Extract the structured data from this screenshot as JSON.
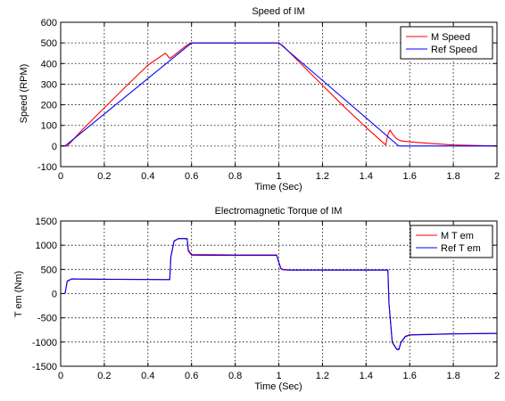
{
  "chart_data": [
    {
      "type": "line",
      "title": "Speed of IM",
      "xlabel": "Time (Sec)",
      "ylabel": "Speed (RPM)",
      "xlim": [
        0,
        2
      ],
      "ylim": [
        -100,
        600
      ],
      "xticks": [
        0,
        0.2,
        0.4,
        0.6,
        0.8,
        1,
        1.2,
        1.4,
        1.6,
        1.8,
        2
      ],
      "yticks": [
        -100,
        0,
        100,
        200,
        300,
        400,
        500,
        600
      ],
      "grid": true,
      "legend_position": "top-right",
      "series": [
        {
          "name": "M Speed",
          "color": "#ff0000",
          "x": [
            0,
            0.03,
            0.05,
            0.1,
            0.2,
            0.3,
            0.4,
            0.48,
            0.5,
            0.52,
            0.55,
            0.58,
            0.6,
            0.7,
            0.8,
            0.9,
            1.0,
            1.02,
            1.1,
            1.2,
            1.3,
            1.4,
            1.49,
            1.5,
            1.51,
            1.52,
            1.54,
            1.56,
            1.6,
            1.7,
            1.8,
            2.0
          ],
          "y": [
            0,
            0,
            22,
            80,
            185,
            290,
            392,
            450,
            425,
            440,
            465,
            490,
            500,
            500,
            500,
            500,
            500,
            485,
            400,
            295,
            190,
            90,
            5,
            55,
            78,
            60,
            35,
            25,
            20,
            12,
            5,
            0
          ]
        },
        {
          "name": "Ref Speed",
          "color": "#0000ff",
          "x": [
            0,
            0.02,
            0.6,
            1.0,
            1.55,
            2.0
          ],
          "y": [
            0,
            0,
            500,
            500,
            0,
            0
          ]
        }
      ]
    },
    {
      "type": "line",
      "title": "Electromagnetic Torque of IM",
      "xlabel": "Time (Sec)",
      "ylabel": "T em (Nm)",
      "xlim": [
        0,
        2
      ],
      "ylim": [
        -1500,
        1500
      ],
      "xticks": [
        0,
        0.2,
        0.4,
        0.6,
        0.8,
        1,
        1.2,
        1.4,
        1.6,
        1.8,
        2
      ],
      "yticks": [
        -1500,
        -1000,
        -500,
        0,
        500,
        1000,
        1500
      ],
      "grid": true,
      "legend_position": "top-right",
      "series": [
        {
          "name": "M T em",
          "color": "#ff0000",
          "x": [
            0,
            0.02,
            0.03,
            0.05,
            0.1,
            0.3,
            0.5,
            0.505,
            0.52,
            0.54,
            0.56,
            0.58,
            0.585,
            0.6,
            0.8,
            0.99,
            1.0,
            1.01,
            1.02,
            1.05,
            1.2,
            1.4,
            1.5,
            1.505,
            1.52,
            1.54,
            1.55,
            1.56,
            1.58,
            1.6,
            1.8,
            2.0
          ],
          "y": [
            0,
            0,
            250,
            300,
            300,
            295,
            290,
            750,
            1080,
            1140,
            1140,
            1140,
            900,
            810,
            800,
            800,
            650,
            520,
            500,
            490,
            490,
            490,
            490,
            -200,
            -1000,
            -1140,
            -1150,
            -1000,
            -880,
            -850,
            -830,
            -820
          ]
        },
        {
          "name": "Ref T em",
          "color": "#0000ff",
          "x": [
            0,
            0.02,
            0.03,
            0.05,
            0.1,
            0.3,
            0.5,
            0.505,
            0.52,
            0.54,
            0.56,
            0.58,
            0.585,
            0.6,
            0.8,
            0.99,
            1.0,
            1.01,
            1.02,
            1.05,
            1.2,
            1.4,
            1.5,
            1.505,
            1.52,
            1.54,
            1.55,
            1.56,
            1.58,
            1.6,
            1.8,
            2.0
          ],
          "y": [
            0,
            0,
            260,
            305,
            300,
            292,
            288,
            760,
            1090,
            1135,
            1135,
            1130,
            880,
            795,
            790,
            790,
            640,
            510,
            490,
            485,
            485,
            485,
            485,
            -210,
            -1010,
            -1150,
            -1160,
            -1010,
            -890,
            -855,
            -832,
            -822
          ]
        }
      ]
    }
  ]
}
